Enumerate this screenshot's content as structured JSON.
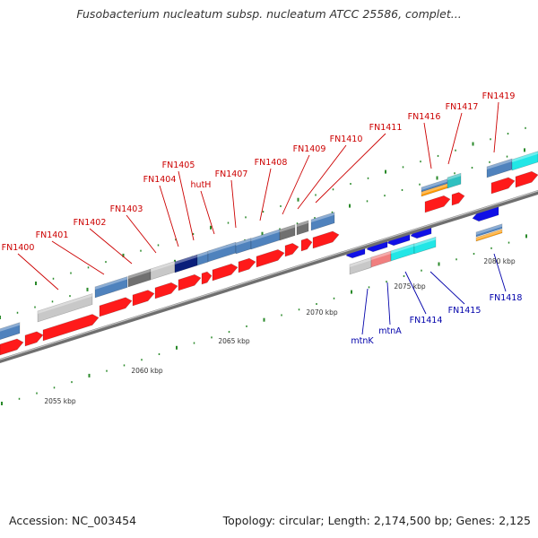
{
  "title": "Fusobacterium nucleatum subsp. nucleatum ATCC 25586, complet...",
  "footer": {
    "accession": "Accession: NC_003454",
    "stats": "Topology: circular; Length: 2,174,500 bp; Genes: 2,125"
  },
  "colors": {
    "gene_red": "#ff1a1a",
    "label_red": "#cc0000",
    "label_blue": "#0000aa",
    "tick_green": "#2a8a2a",
    "backbone": "#8a8a8a"
  },
  "scale_labels": [
    "2055 kbp",
    "2060 kbp",
    "2065 kbp",
    "2070 kbp",
    "2075 kbp",
    "2080 kbp"
  ],
  "features": {
    "colors": {
      "red": "#ff1a1a",
      "steel": "#4f82bd",
      "silver": "#c8c8c8",
      "gray": "#707070",
      "navy": "#0a1e7a",
      "cyan": "#22e6e6",
      "orange": "#ff9900",
      "blue": "#1010e6",
      "salmon": "#f07f7f",
      "teal": "#2fc0c0"
    },
    "top_labels": [
      "FN1400",
      "FN1401",
      "FN1402",
      "FN1403",
      "FN1404",
      "FN1405",
      "hutH",
      "FN1407",
      "FN1408",
      "FN1409",
      "FN1410",
      "FN1411",
      "FN1416",
      "FN1417",
      "FN1419"
    ],
    "bottom_labels": [
      "mtnK",
      "mtnA",
      "FN1414",
      "FN1415",
      "FN1418"
    ]
  }
}
